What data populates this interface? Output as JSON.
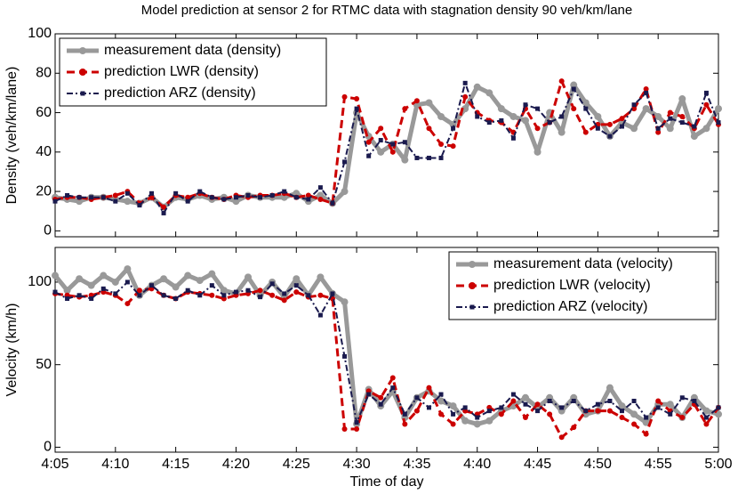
{
  "chart_data": [
    {
      "type": "line",
      "title": "Model prediction at sensor 2 for RTMC data with stagnation density 90 veh/km/lane",
      "ylabel": "Density (veh/km/lane)",
      "legend": "upper left",
      "x": [
        "4:05",
        "4:06",
        "4:07",
        "4:08",
        "4:09",
        "4:10",
        "4:11",
        "4:12",
        "4:13",
        "4:14",
        "4:15",
        "4:16",
        "4:17",
        "4:18",
        "4:19",
        "4:20",
        "4:21",
        "4:22",
        "4:23",
        "4:24",
        "4:25",
        "4:26",
        "4:27",
        "4:28",
        "4:29",
        "4:30",
        "4:31",
        "4:32",
        "4:33",
        "4:34",
        "4:35",
        "4:36",
        "4:37",
        "4:38",
        "4:39",
        "4:40",
        "4:41",
        "4:42",
        "4:43",
        "4:44",
        "4:45",
        "4:46",
        "4:47",
        "4:48",
        "4:49",
        "4:50",
        "4:51",
        "4:52",
        "4:53",
        "4:54",
        "4:55",
        "4:56",
        "4:57",
        "4:58",
        "4:59",
        "5:00"
      ],
      "ylim": [
        -3,
        100
      ],
      "yticks": [
        0,
        20,
        40,
        60,
        80,
        100
      ],
      "series": [
        {
          "name": "measurement data (density)",
          "color": "#999999",
          "linestyle": "solid",
          "marker": "o",
          "values": [
            17,
            16,
            15,
            17,
            17,
            16,
            15,
            14,
            17,
            12,
            17,
            16,
            18,
            16,
            17,
            15,
            18,
            17,
            17,
            17,
            19,
            15,
            18,
            14,
            20,
            60,
            48,
            40,
            44,
            36,
            64,
            65,
            58,
            54,
            62,
            73,
            70,
            62,
            58,
            56,
            40,
            60,
            50,
            74,
            65,
            58,
            48,
            55,
            52,
            62,
            58,
            52,
            67,
            48,
            52,
            62
          ]
        },
        {
          "name": "prediction LWR (density)",
          "color": "#cc0000",
          "linestyle": "dashed",
          "marker": "o",
          "values": [
            16,
            17,
            17,
            16,
            17,
            18,
            20,
            14,
            17,
            12,
            18,
            17,
            19,
            17,
            16,
            18,
            17,
            18,
            18,
            19,
            17,
            18,
            16,
            14,
            68,
            67,
            45,
            52,
            40,
            62,
            66,
            52,
            44,
            43,
            68,
            60,
            56,
            55,
            50,
            62,
            52,
            55,
            76,
            62,
            50,
            54,
            54,
            57,
            62,
            72,
            50,
            60,
            58,
            52,
            64,
            54
          ]
        },
        {
          "name": "prediction ARZ (density)",
          "color": "#1a1a4e",
          "linestyle": "dashdot",
          "marker": "s",
          "values": [
            15,
            18,
            17,
            17,
            17,
            15,
            19,
            13,
            19,
            9,
            19,
            15,
            20,
            17,
            16,
            17,
            18,
            17,
            18,
            20,
            17,
            16,
            22,
            14,
            35,
            62,
            38,
            46,
            44,
            45,
            37,
            37,
            37,
            52,
            75,
            58,
            55,
            56,
            47,
            64,
            62,
            55,
            58,
            72,
            62,
            52,
            48,
            53,
            64,
            70,
            52,
            57,
            55,
            53,
            70,
            55
          ]
        }
      ]
    },
    {
      "type": "line",
      "ylabel": "Velocity (km/h)",
      "xlabel": "Time of day",
      "legend": "upper right",
      "x": [
        "4:05",
        "4:06",
        "4:07",
        "4:08",
        "4:09",
        "4:10",
        "4:11",
        "4:12",
        "4:13",
        "4:14",
        "4:15",
        "4:16",
        "4:17",
        "4:18",
        "4:19",
        "4:20",
        "4:21",
        "4:22",
        "4:23",
        "4:24",
        "4:25",
        "4:26",
        "4:27",
        "4:28",
        "4:29",
        "4:30",
        "4:31",
        "4:32",
        "4:33",
        "4:34",
        "4:35",
        "4:36",
        "4:37",
        "4:38",
        "4:39",
        "4:40",
        "4:41",
        "4:42",
        "4:43",
        "4:44",
        "4:45",
        "4:46",
        "4:47",
        "4:48",
        "4:49",
        "4:50",
        "4:51",
        "4:52",
        "4:53",
        "4:54",
        "4:55",
        "4:56",
        "4:57",
        "4:58",
        "4:59",
        "5:00"
      ],
      "xticks": [
        "4:05",
        "4:10",
        "4:15",
        "4:20",
        "4:25",
        "4:30",
        "4:35",
        "4:40",
        "4:45",
        "4:50",
        "4:55",
        "5:00"
      ],
      "ylim": [
        -3,
        121
      ],
      "yticks": [
        0,
        50,
        100
      ],
      "series": [
        {
          "name": "measurement data (velocity)",
          "color": "#999999",
          "linestyle": "solid",
          "marker": "o",
          "values": [
            104,
            95,
            102,
            98,
            104,
            100,
            108,
            92,
            98,
            102,
            97,
            104,
            101,
            105,
            95,
            93,
            103,
            92,
            100,
            91,
            102,
            92,
            103,
            93,
            88,
            14,
            35,
            25,
            34,
            18,
            30,
            34,
            28,
            25,
            16,
            14,
            16,
            22,
            25,
            30,
            24,
            30,
            22,
            30,
            20,
            22,
            36,
            25,
            20,
            15,
            26,
            26,
            18,
            30,
            22,
            20
          ]
        },
        {
          "name": "prediction LWR (velocity)",
          "color": "#cc0000",
          "linestyle": "dashed",
          "marker": "o",
          "values": [
            93,
            92,
            91,
            92,
            94,
            92,
            87,
            95,
            96,
            92,
            90,
            94,
            93,
            92,
            90,
            92,
            93,
            95,
            92,
            89,
            94,
            91,
            92,
            90,
            11,
            11,
            34,
            30,
            42,
            14,
            22,
            36,
            20,
            14,
            22,
            20,
            24,
            20,
            28,
            18,
            26,
            20,
            6,
            12,
            22,
            22,
            22,
            18,
            14,
            8,
            28,
            22,
            18,
            26,
            14,
            24
          ]
        },
        {
          "name": "prediction ARZ (velocity)",
          "color": "#1a1a4e",
          "linestyle": "dashdot",
          "marker": "s",
          "values": [
            94,
            90,
            92,
            90,
            96,
            93,
            100,
            92,
            98,
            92,
            90,
            95,
            92,
            98,
            92,
            94,
            95,
            91,
            99,
            93,
            98,
            92,
            80,
            93,
            55,
            15,
            32,
            26,
            36,
            20,
            30,
            24,
            32,
            20,
            24,
            18,
            22,
            24,
            32,
            26,
            22,
            28,
            24,
            28,
            22,
            26,
            28,
            22,
            28,
            18,
            24,
            20,
            30,
            28,
            18,
            24
          ]
        }
      ]
    }
  ]
}
